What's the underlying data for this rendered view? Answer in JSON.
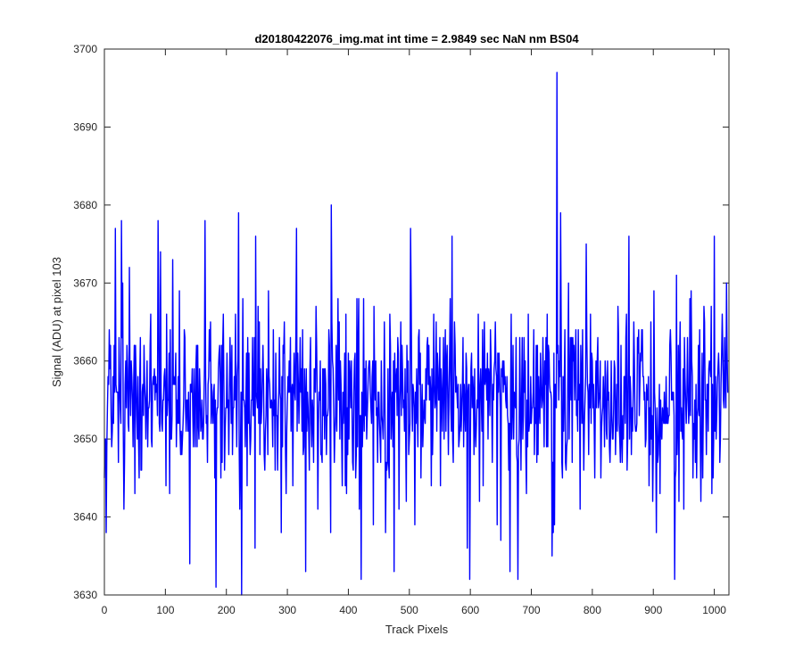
{
  "chart_data": {
    "type": "line",
    "title": "d20180422076_img.mat int time = 2.9849 sec  NaN nm BS04",
    "xlabel": "Track Pixels",
    "ylabel": "Signal (ADU) at pixel 103",
    "xlim": [
      0,
      1024
    ],
    "ylim": [
      3630,
      3700
    ],
    "xticks": [
      0,
      100,
      200,
      300,
      400,
      500,
      600,
      700,
      800,
      900,
      1000
    ],
    "yticks": [
      3630,
      3640,
      3650,
      3660,
      3670,
      3680,
      3690,
      3700
    ],
    "xtick_labels": [
      "0",
      "100",
      "200",
      "300",
      "400",
      "500",
      "600",
      "700",
      "800",
      "900",
      "1000"
    ],
    "ytick_labels": [
      "3630",
      "3640",
      "3650",
      "3660",
      "3670",
      "3680",
      "3690",
      "3700"
    ],
    "grid": false,
    "box": true,
    "series": [
      {
        "color": "#0000ff",
        "n_points": 1024,
        "mean": 3655,
        "std": 6,
        "sample_min": 3630,
        "sample_max": 3697,
        "spikes": [
          {
            "x": 3,
            "y": 3638
          },
          {
            "x": 18,
            "y": 3677
          },
          {
            "x": 28,
            "y": 3678
          },
          {
            "x": 88,
            "y": 3678
          },
          {
            "x": 92,
            "y": 3674
          },
          {
            "x": 140,
            "y": 3634
          },
          {
            "x": 165,
            "y": 3678
          },
          {
            "x": 183,
            "y": 3631
          },
          {
            "x": 220,
            "y": 3679
          },
          {
            "x": 225,
            "y": 3630
          },
          {
            "x": 248,
            "y": 3676
          },
          {
            "x": 290,
            "y": 3638
          },
          {
            "x": 315,
            "y": 3677
          },
          {
            "x": 330,
            "y": 3633
          },
          {
            "x": 372,
            "y": 3680
          },
          {
            "x": 418,
            "y": 3641
          },
          {
            "x": 475,
            "y": 3633
          },
          {
            "x": 502,
            "y": 3677
          },
          {
            "x": 570,
            "y": 3676
          },
          {
            "x": 595,
            "y": 3636
          },
          {
            "x": 650,
            "y": 3637
          },
          {
            "x": 665,
            "y": 3633
          },
          {
            "x": 678,
            "y": 3632
          },
          {
            "x": 734,
            "y": 3635
          },
          {
            "x": 742,
            "y": 3697
          },
          {
            "x": 748,
            "y": 3679
          },
          {
            "x": 790,
            "y": 3675
          },
          {
            "x": 860,
            "y": 3676
          },
          {
            "x": 905,
            "y": 3638
          },
          {
            "x": 935,
            "y": 3632
          },
          {
            "x": 960,
            "y": 3668
          },
          {
            "x": 1000,
            "y": 3676
          },
          {
            "x": 1020,
            "y": 3670
          }
        ]
      }
    ]
  }
}
